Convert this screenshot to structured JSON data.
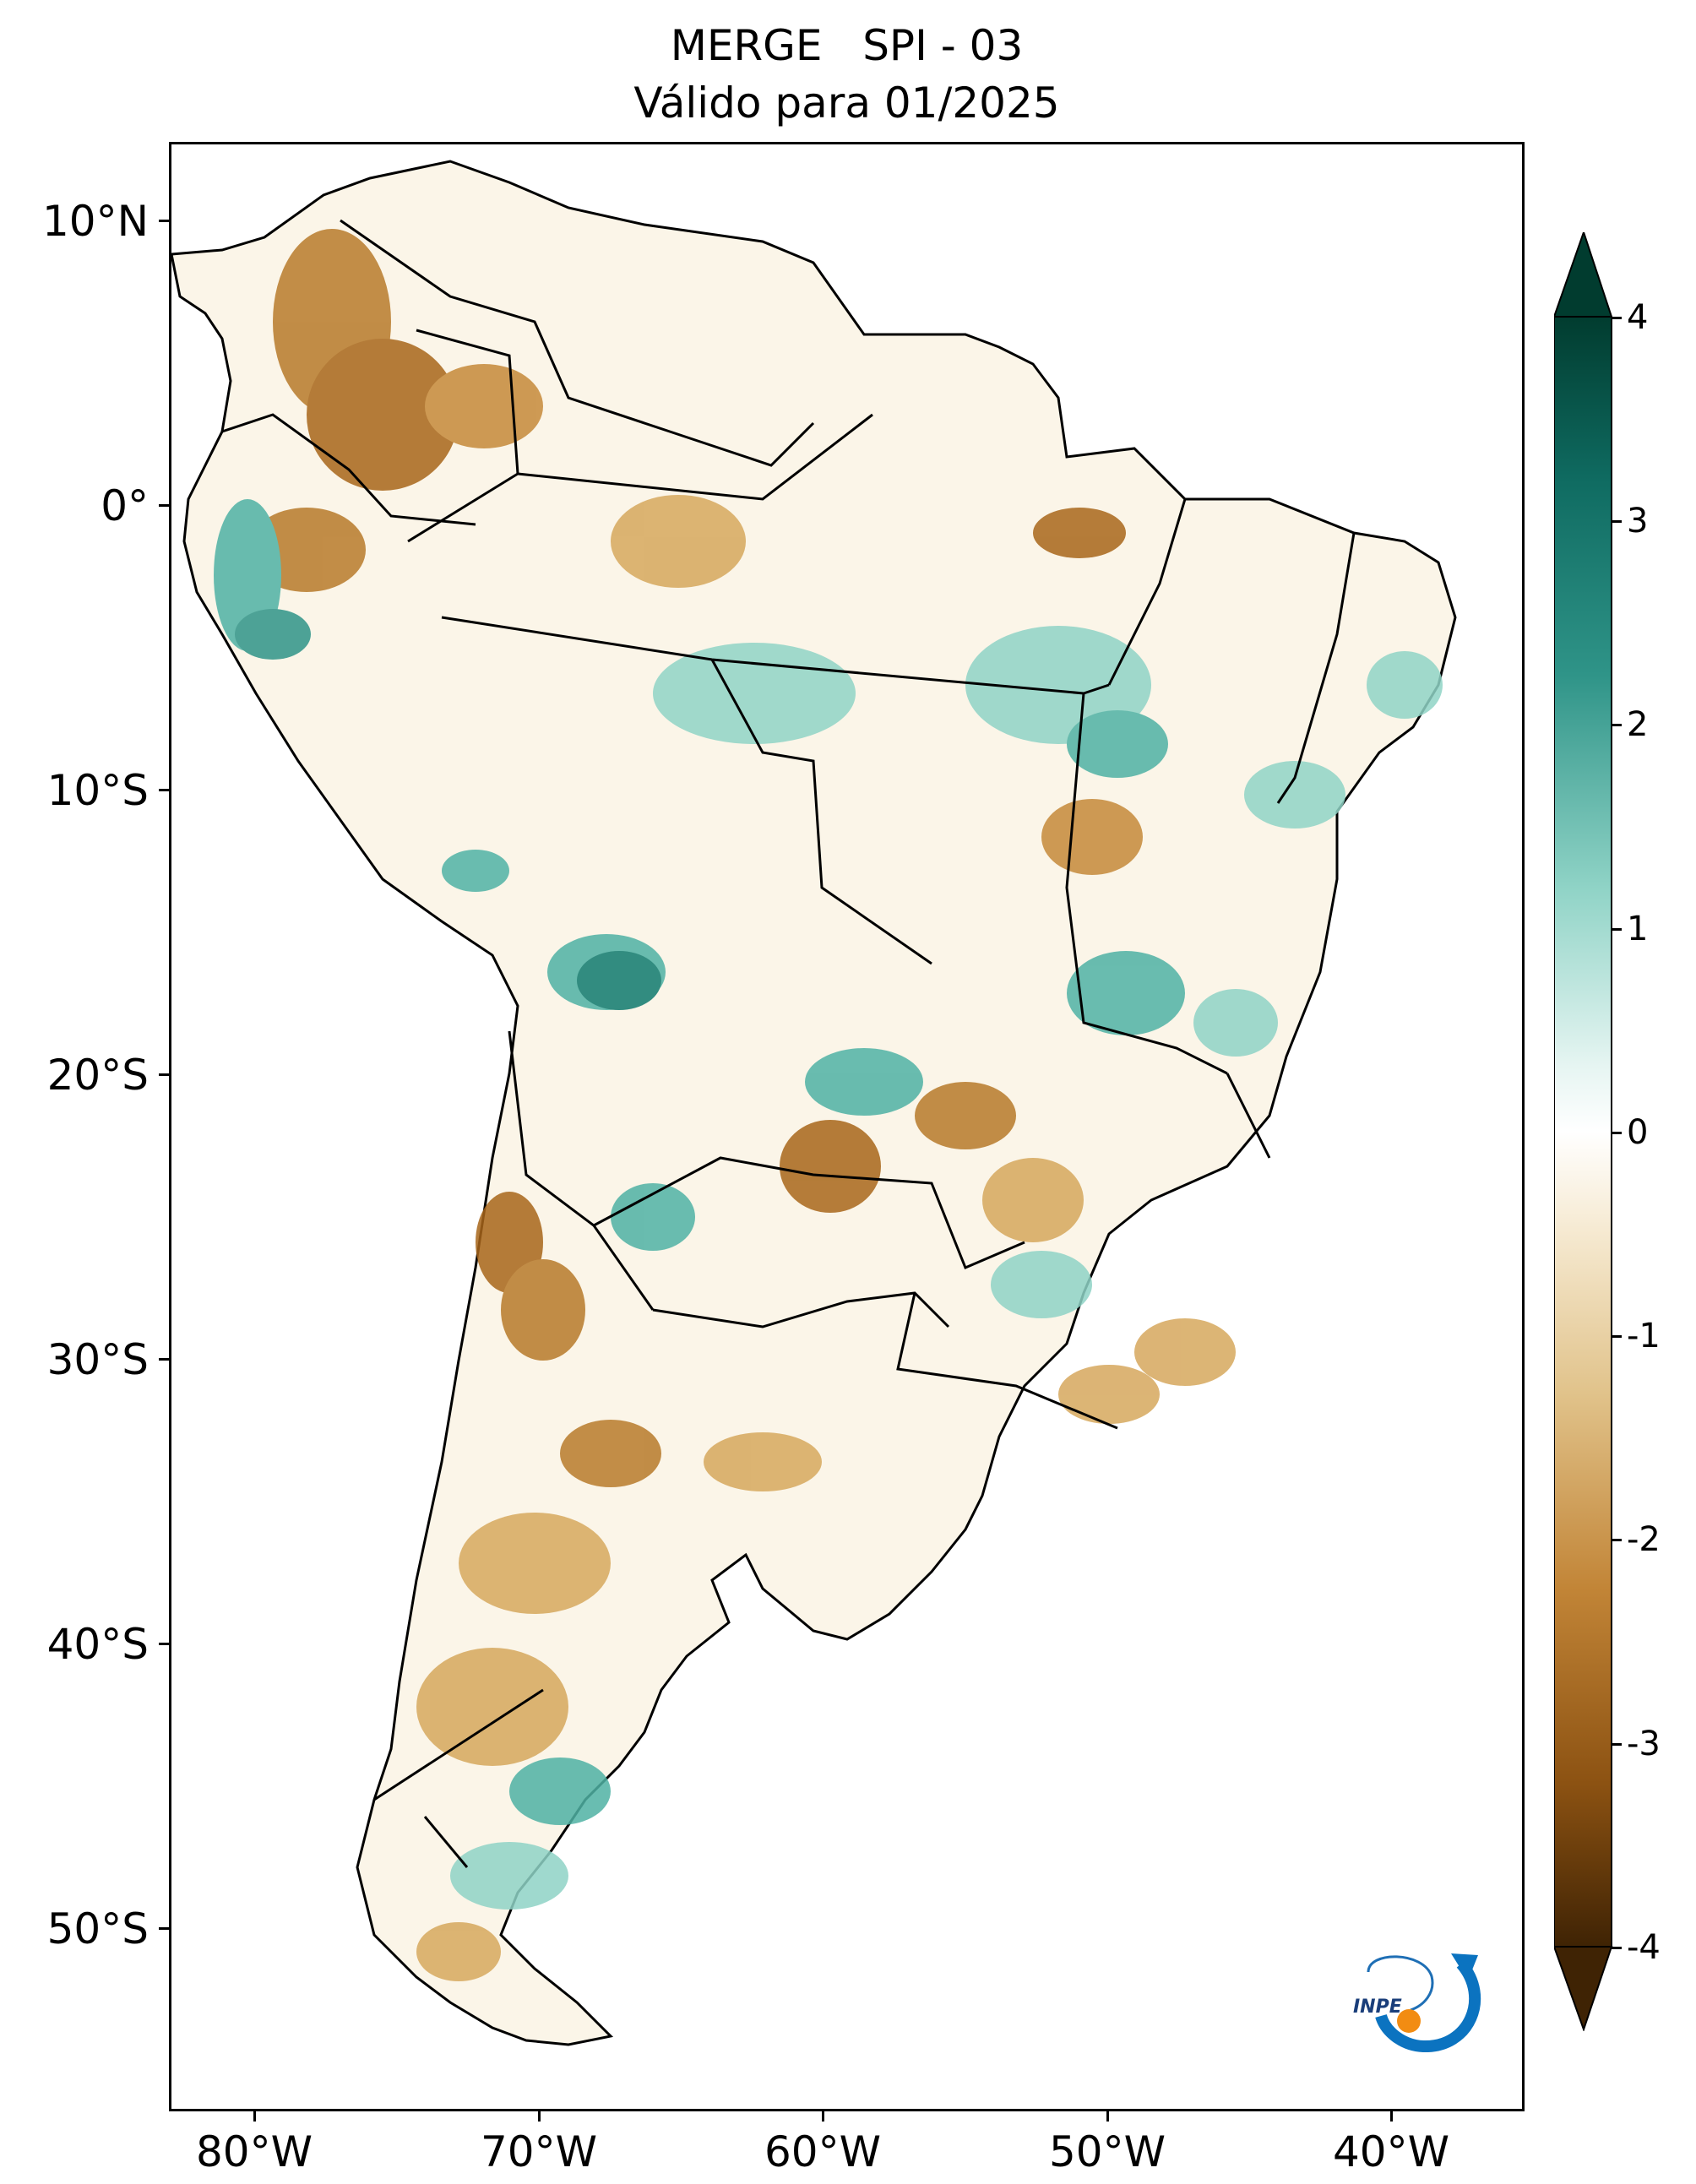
{
  "title": {
    "line1": "MERGE   SPI - 03",
    "line2": "Válido para 01/2025"
  },
  "axes": {
    "y_labels": [
      "10°N",
      "0°",
      "10°S",
      "20°S",
      "30°S",
      "40°S",
      "50°S"
    ],
    "x_labels": [
      "80°W",
      "70°W",
      "60°W",
      "50°W",
      "40°W"
    ]
  },
  "colorbar": {
    "tick_labels": [
      "4",
      "3",
      "2",
      "1",
      "0",
      "-1",
      "-2",
      "-3",
      "-4"
    ],
    "min": -4,
    "max": 4,
    "extend": "both",
    "colors": {
      "wet_max": "#013c2f",
      "wet_high": "#0f7a6e",
      "wet_mid": "#4fb2a4",
      "wet_low": "#bfe6df",
      "neutral": "#ffffff",
      "dry_low": "#f2e2c0",
      "dry_mid": "#d6a85d",
      "dry_high": "#a8661a",
      "dry_max": "#4a2a06"
    }
  },
  "logo": {
    "text": "INPE"
  }
}
